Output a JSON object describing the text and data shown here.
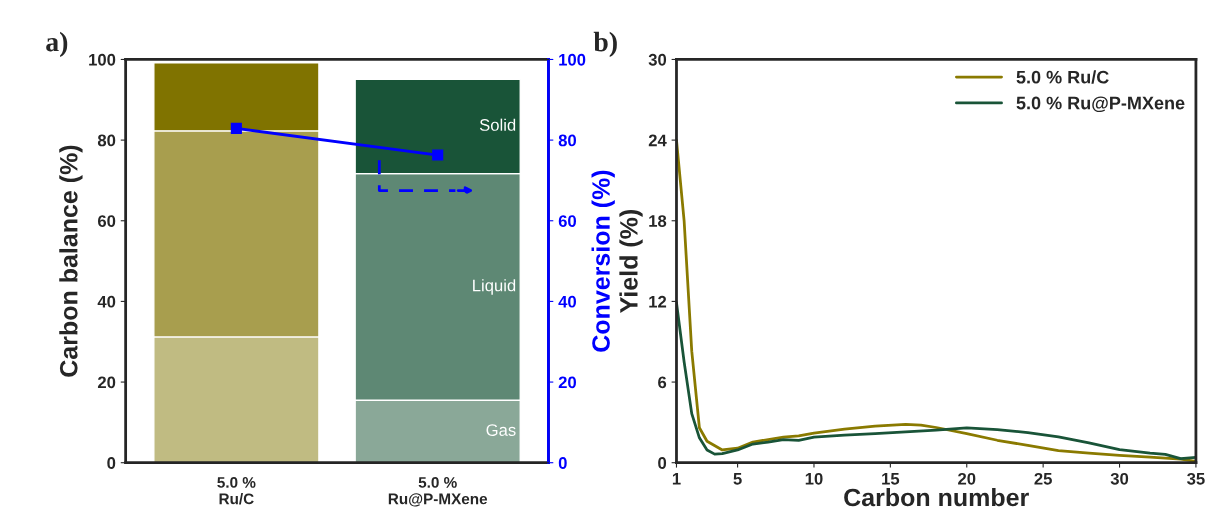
{
  "chart_data": [
    {
      "type": "bar",
      "title": "a)",
      "stacked": true,
      "categories": [
        "5.0 %\nRu/C",
        "5.0 %\nRu@P-MXene"
      ],
      "ylabel": "Carbon balance (%)",
      "y2label": "Conversion (%)",
      "ylim": [
        0,
        100
      ],
      "yticks": [
        0,
        20,
        40,
        60,
        80,
        100
      ],
      "y2lim": [
        0,
        100
      ],
      "y2ticks": [
        0,
        20,
        40,
        60,
        80,
        100
      ],
      "grid": false,
      "legend": false,
      "series": [
        {
          "name": "Gas",
          "colors": [
            "#c0bb82",
            "#8aa898"
          ],
          "values": [
            31.2,
            15.5
          ]
        },
        {
          "name": "Liquid",
          "colors": [
            "#a89e4e",
            "#5e8874"
          ],
          "values": [
            51.1,
            56.2
          ]
        },
        {
          "name": "Solid",
          "colors": [
            "#807300",
            "#195438"
          ],
          "values": [
            16.9,
            23.4
          ]
        },
        {
          "type": "line",
          "axis": "y2",
          "color": "#0000ff",
          "marker": "square",
          "values": [
            82.9,
            76.3
          ]
        }
      ]
    },
    {
      "type": "line",
      "title": "b)",
      "xlabel": "Carbon number",
      "ylabel": "Yield (%)",
      "xlim": [
        1,
        35
      ],
      "xticks": [
        1,
        5,
        10,
        15,
        20,
        25,
        30,
        35
      ],
      "ylim": [
        0,
        30
      ],
      "yticks": [
        0,
        6,
        12,
        18,
        24,
        30
      ],
      "grid": false,
      "legend": "top right",
      "series": [
        {
          "name": "5.0 % Ru/C",
          "color": "#8a7a00",
          "x": [
            1,
            1.5,
            2,
            2.5,
            3,
            4,
            5,
            6,
            8,
            9,
            10,
            12,
            14,
            16,
            17,
            18,
            20,
            22,
            24,
            26,
            28,
            30,
            32,
            34,
            35
          ],
          "values": [
            24.0,
            18.0,
            8.3,
            2.6,
            1.6,
            0.95,
            1.08,
            1.54,
            1.9,
            2.0,
            2.2,
            2.5,
            2.72,
            2.85,
            2.8,
            2.62,
            2.16,
            1.67,
            1.29,
            0.9,
            0.72,
            0.54,
            0.41,
            0.26,
            0.1
          ]
        },
        {
          "name": "5.0 % Ru@P-MXene",
          "color": "#195438",
          "x": [
            1,
            1.5,
            2,
            2.5,
            3,
            3.5,
            4,
            5,
            6,
            7,
            8,
            9,
            10,
            12,
            14,
            16,
            18,
            20,
            22,
            24,
            26,
            28,
            30,
            32,
            33,
            34,
            35
          ],
          "values": [
            11.9,
            7.5,
            3.65,
            1.85,
            0.95,
            0.64,
            0.67,
            0.95,
            1.39,
            1.54,
            1.72,
            1.67,
            1.9,
            2.06,
            2.16,
            2.29,
            2.42,
            2.6,
            2.47,
            2.24,
            1.93,
            1.47,
            0.98,
            0.72,
            0.62,
            0.31,
            0.39
          ]
        }
      ]
    }
  ]
}
